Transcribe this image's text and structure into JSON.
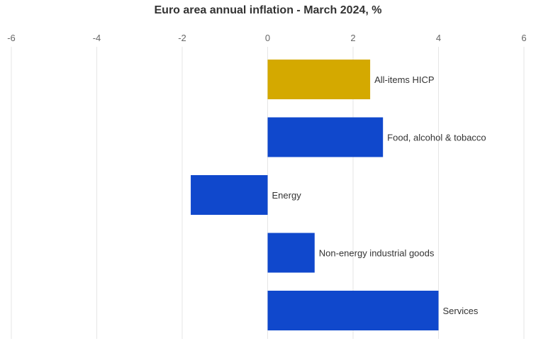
{
  "chart_data": {
    "type": "bar",
    "orientation": "horizontal",
    "title": "Euro area annual inflation - March  2024, %",
    "xlabel": "",
    "ylabel": "",
    "xlim": [
      -6,
      6
    ],
    "x_ticks": [
      -6,
      -4,
      -2,
      0,
      2,
      4,
      6
    ],
    "grid": true,
    "categories": [
      "All-items HICP",
      "Food, alcohol & tobacco",
      "Energy",
      "Non-energy industrial goods",
      "Services"
    ],
    "values": [
      2.4,
      2.7,
      -1.8,
      1.1,
      4.0
    ],
    "colors": [
      "#d4a900",
      "#1048cc",
      "#1048cc",
      "#1048cc",
      "#1048cc"
    ]
  }
}
